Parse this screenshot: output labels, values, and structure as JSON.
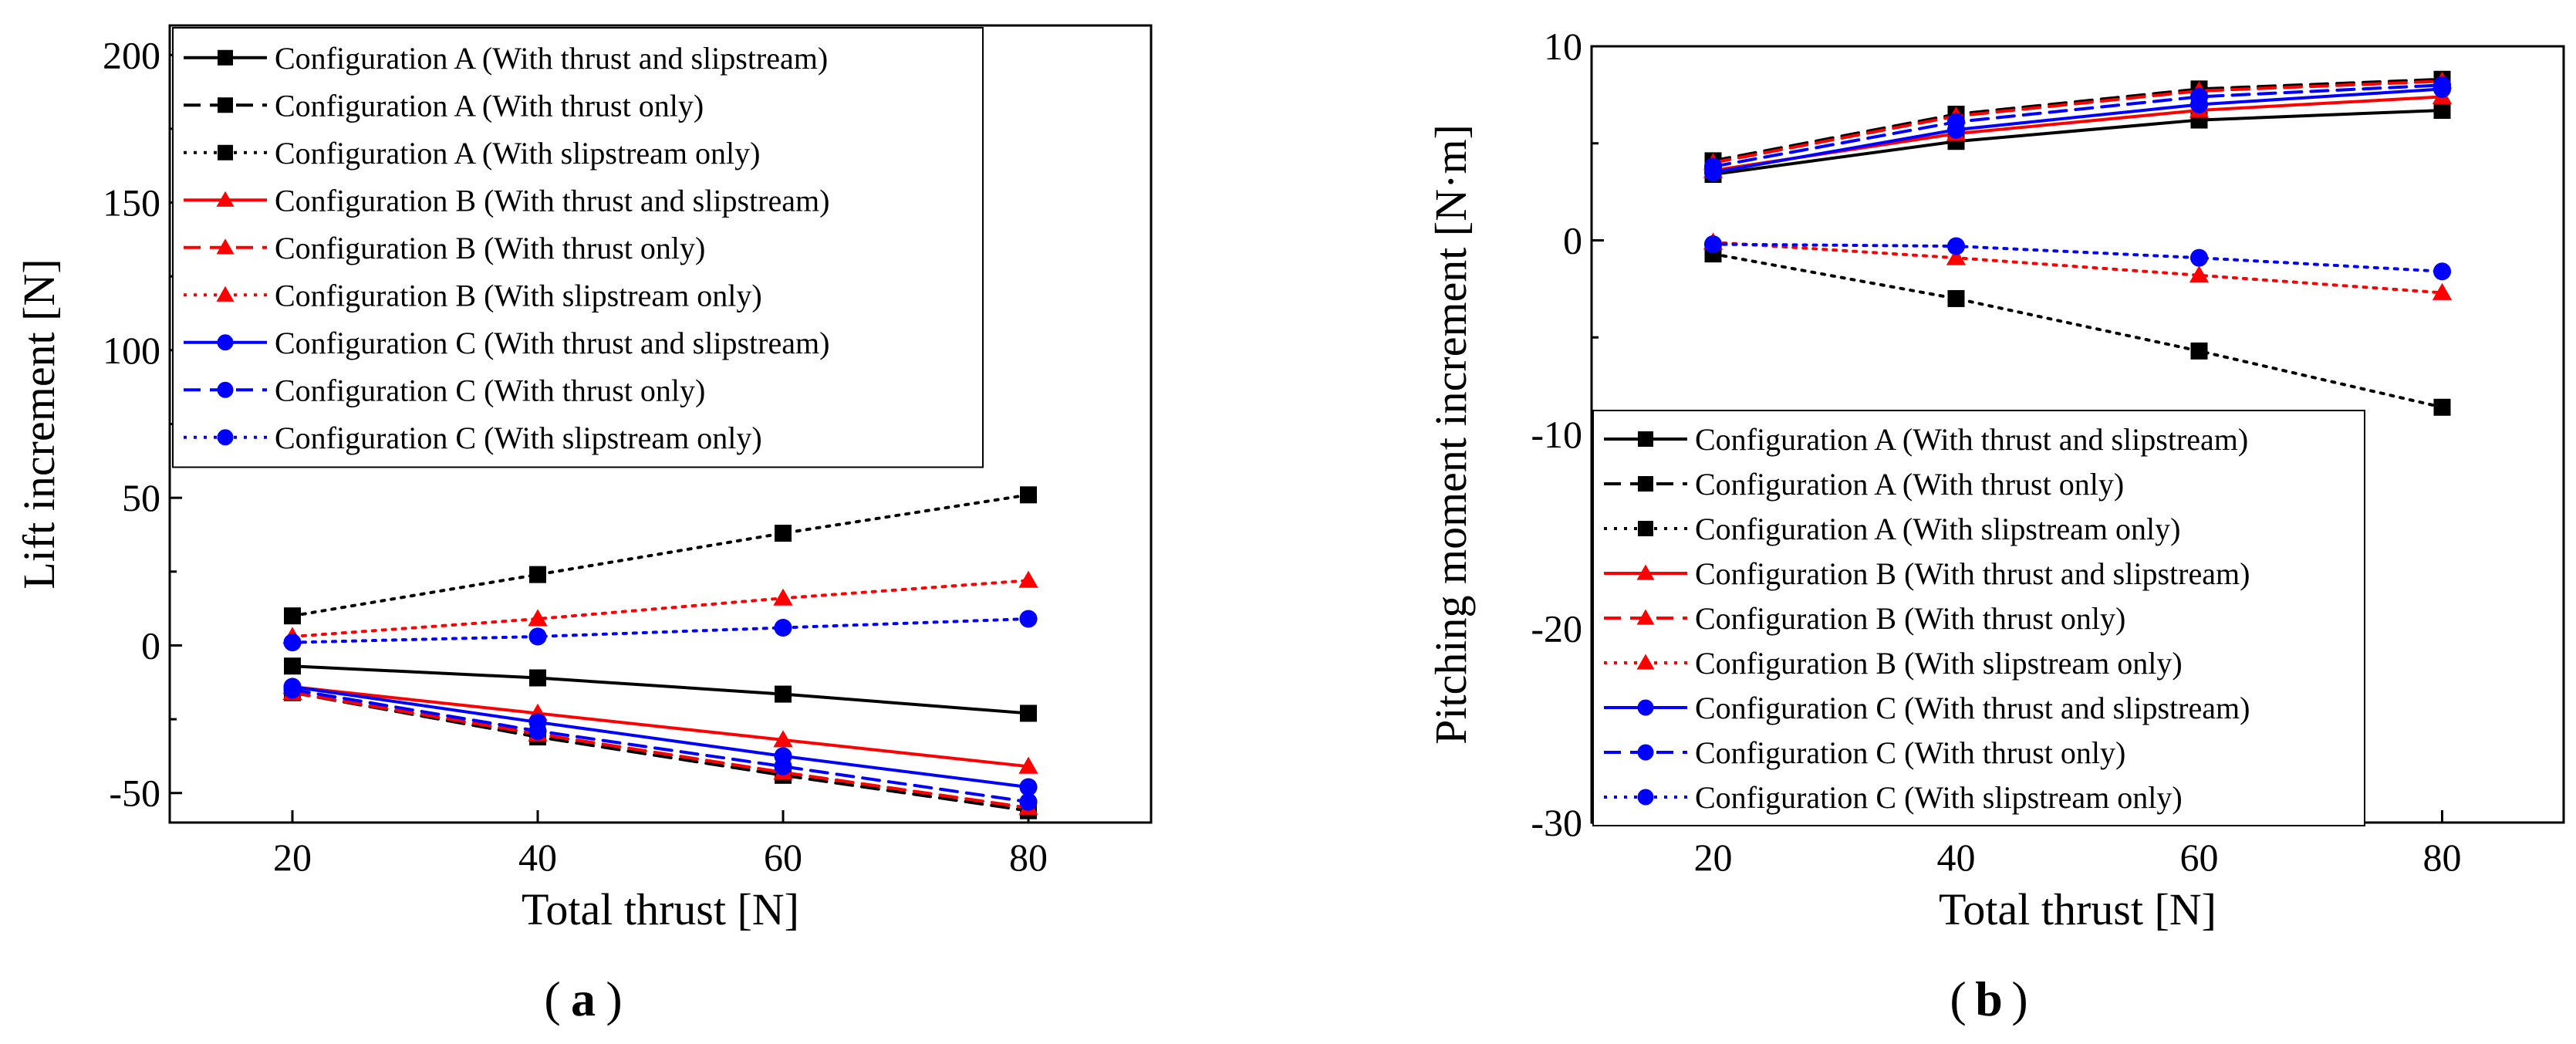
{
  "chart_data": [
    {
      "type": "line",
      "panel_label": "a",
      "xlabel": "Total thrust [N]",
      "ylabel": "Lift increment [N]",
      "xlim": [
        10,
        90
      ],
      "ylim": [
        -60,
        210
      ],
      "xticks": [
        20,
        40,
        60,
        80
      ],
      "xtick_labels": [
        "20",
        "40",
        "60",
        "80"
      ],
      "yticks": [
        200,
        150,
        100,
        50,
        0,
        -50
      ],
      "ytick_labels": [
        "200",
        "150",
        "100",
        "50",
        "0",
        "-50"
      ],
      "legend_position": "top",
      "x": [
        20,
        40,
        60,
        80
      ],
      "series": [
        {
          "name": "Configuration A (With thrust and slipstream)",
          "color": "#000000",
          "line": "solid",
          "marker": "square",
          "values": [
            -7,
            -11,
            -16.5,
            -23
          ]
        },
        {
          "name": "Configuration A (With thrust only)",
          "color": "#000000",
          "line": "dashed",
          "marker": "square",
          "values": [
            -16,
            -31,
            -44,
            -56
          ]
        },
        {
          "name": "Configuration A (With slipstream only)",
          "color": "#000000",
          "line": "dotted",
          "marker": "square",
          "values": [
            10,
            24,
            38,
            51
          ]
        },
        {
          "name": "Configuration B  (With thrust and slipstream)",
          "color": "#ff0000",
          "line": "solid",
          "marker": "triangle",
          "values": [
            -14,
            -23,
            -32,
            -41
          ]
        },
        {
          "name": "Configuration B (With thrust only)",
          "color": "#ff0000",
          "line": "dashed",
          "marker": "triangle",
          "values": [
            -16,
            -30,
            -43,
            -55
          ]
        },
        {
          "name": "Configuration B (With slipstream only)",
          "color": "#ff0000",
          "line": "dotted",
          "marker": "triangle",
          "values": [
            3,
            9,
            16,
            22
          ]
        },
        {
          "name": "Configuration C  (With thrust and slipstream)",
          "color": "#0000ff",
          "line": "solid",
          "marker": "circle",
          "values": [
            -14,
            -26,
            -37.5,
            -48
          ]
        },
        {
          "name": "Configuration C (With thrust only)",
          "color": "#0000ff",
          "line": "dashed",
          "marker": "circle",
          "values": [
            -15,
            -29,
            -41,
            -53
          ]
        },
        {
          "name": "Configuration C (With slipstream only)",
          "color": "#0000ff",
          "line": "dotted",
          "marker": "circle",
          "values": [
            1,
            3,
            6,
            9
          ]
        }
      ]
    },
    {
      "type": "line",
      "panel_label": "b",
      "xlabel": "Total thrust [N]",
      "ylabel": "Pitching moment increment [N·m]",
      "xlim": [
        10,
        90
      ],
      "ylim": [
        -30,
        10
      ],
      "xticks": [
        20,
        40,
        60,
        80
      ],
      "xtick_labels": [
        "20",
        "40",
        "60",
        "80"
      ],
      "yticks": [
        10,
        0,
        -10,
        -20,
        -30
      ],
      "ytick_labels": [
        "10",
        "0",
        "-10",
        "-20",
        "-30"
      ],
      "legend_position": "bottom-left",
      "x": [
        20,
        40,
        60,
        80
      ],
      "series": [
        {
          "name": "Configuration A  (With thrust and slipstream)",
          "color": "#000000",
          "line": "solid",
          "marker": "square",
          "values": [
            3.4,
            5.1,
            6.2,
            6.7
          ]
        },
        {
          "name": "Configuration A (With thrust only)",
          "color": "#000000",
          "line": "dashed",
          "marker": "square",
          "values": [
            4.1,
            6.5,
            7.8,
            8.3
          ]
        },
        {
          "name": "Configuration A (With slipstream only)",
          "color": "#000000",
          "line": "dotted",
          "marker": "square",
          "values": [
            -0.7,
            -3.0,
            -5.7,
            -8.6
          ]
        },
        {
          "name": "Configuration B  (With thrust and slipstream)",
          "color": "#ff0000",
          "line": "solid",
          "marker": "triangle",
          "values": [
            3.6,
            5.5,
            6.7,
            7.4
          ]
        },
        {
          "name": "Configuration B (With thrust only)",
          "color": "#ff0000",
          "line": "dashed",
          "marker": "triangle",
          "values": [
            4.0,
            6.4,
            7.7,
            8.2
          ]
        },
        {
          "name": "Configuration B (With slipstream only)",
          "color": "#ff0000",
          "line": "dotted",
          "marker": "triangle",
          "values": [
            -0.1,
            -0.9,
            -1.8,
            -2.7
          ]
        },
        {
          "name": "Configuration C  (With thrust and slipstream)",
          "color": "#0000ff",
          "line": "solid",
          "marker": "circle",
          "values": [
            3.5,
            5.7,
            7.0,
            7.8
          ]
        },
        {
          "name": "Configuration C (With thrust only)",
          "color": "#0000ff",
          "line": "dashed",
          "marker": "circle",
          "values": [
            3.8,
            6.1,
            7.4,
            8.0
          ]
        },
        {
          "name": "Configuration C (With slipstream only)",
          "color": "#0000ff",
          "line": "dotted",
          "marker": "circle",
          "values": [
            -0.2,
            -0.3,
            -0.9,
            -1.6
          ]
        }
      ]
    }
  ]
}
